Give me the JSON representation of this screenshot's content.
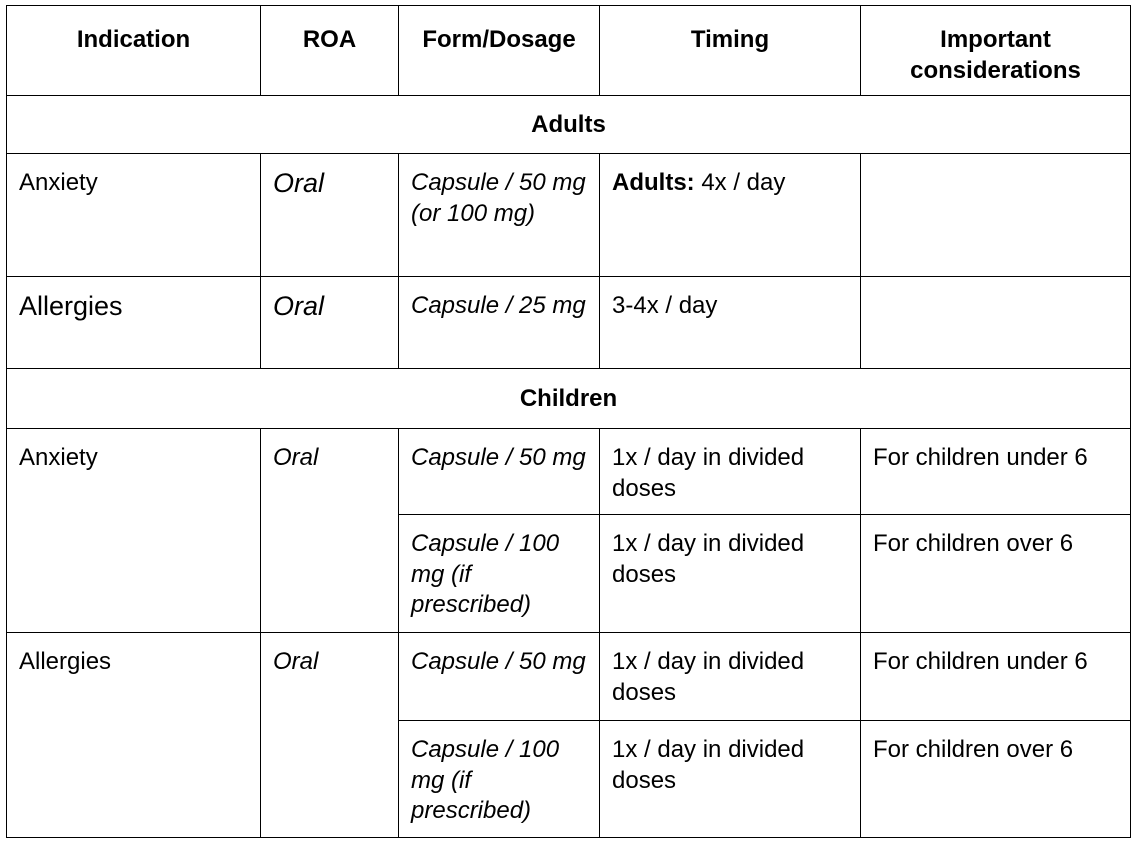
{
  "headers": [
    "Indication",
    "ROA",
    "Form/Dosage",
    "Timing",
    "Important considerations"
  ],
  "sections": {
    "adults": "Adults",
    "children": "Children"
  },
  "adults_rows": [
    {
      "indication": "Anxiety",
      "roa": "Oral",
      "form": "Capsule / 50 mg (or 100 mg)",
      "timing_bold": "Adults:",
      "timing": "4x / day",
      "considerations": ""
    },
    {
      "indication": "Allergies",
      "roa": "Oral",
      "form": "Capsule / 25 mg",
      "timing": "3-4x / day",
      "considerations": ""
    }
  ],
  "children_groups": [
    {
      "indication": "Anxiety",
      "roa": "Oral",
      "rows": [
        {
          "form": "Capsule / 50 mg",
          "timing": "1x / day in divided doses",
          "considerations": "For children under 6"
        },
        {
          "form": "Capsule / 100 mg (if prescribed)",
          "timing": "1x / day in divided doses",
          "considerations": "For children over 6"
        }
      ]
    },
    {
      "indication": "Allergies",
      "roa": "Oral",
      "rows": [
        {
          "form": "Capsule / 50 mg",
          "timing": "1x / day in divided doses",
          "considerations": "For children under 6"
        },
        {
          "form": "Capsule / 100 mg (if prescribed)",
          "timing": "1x / day in divided doses",
          "considerations": "For children over 6"
        }
      ]
    }
  ]
}
